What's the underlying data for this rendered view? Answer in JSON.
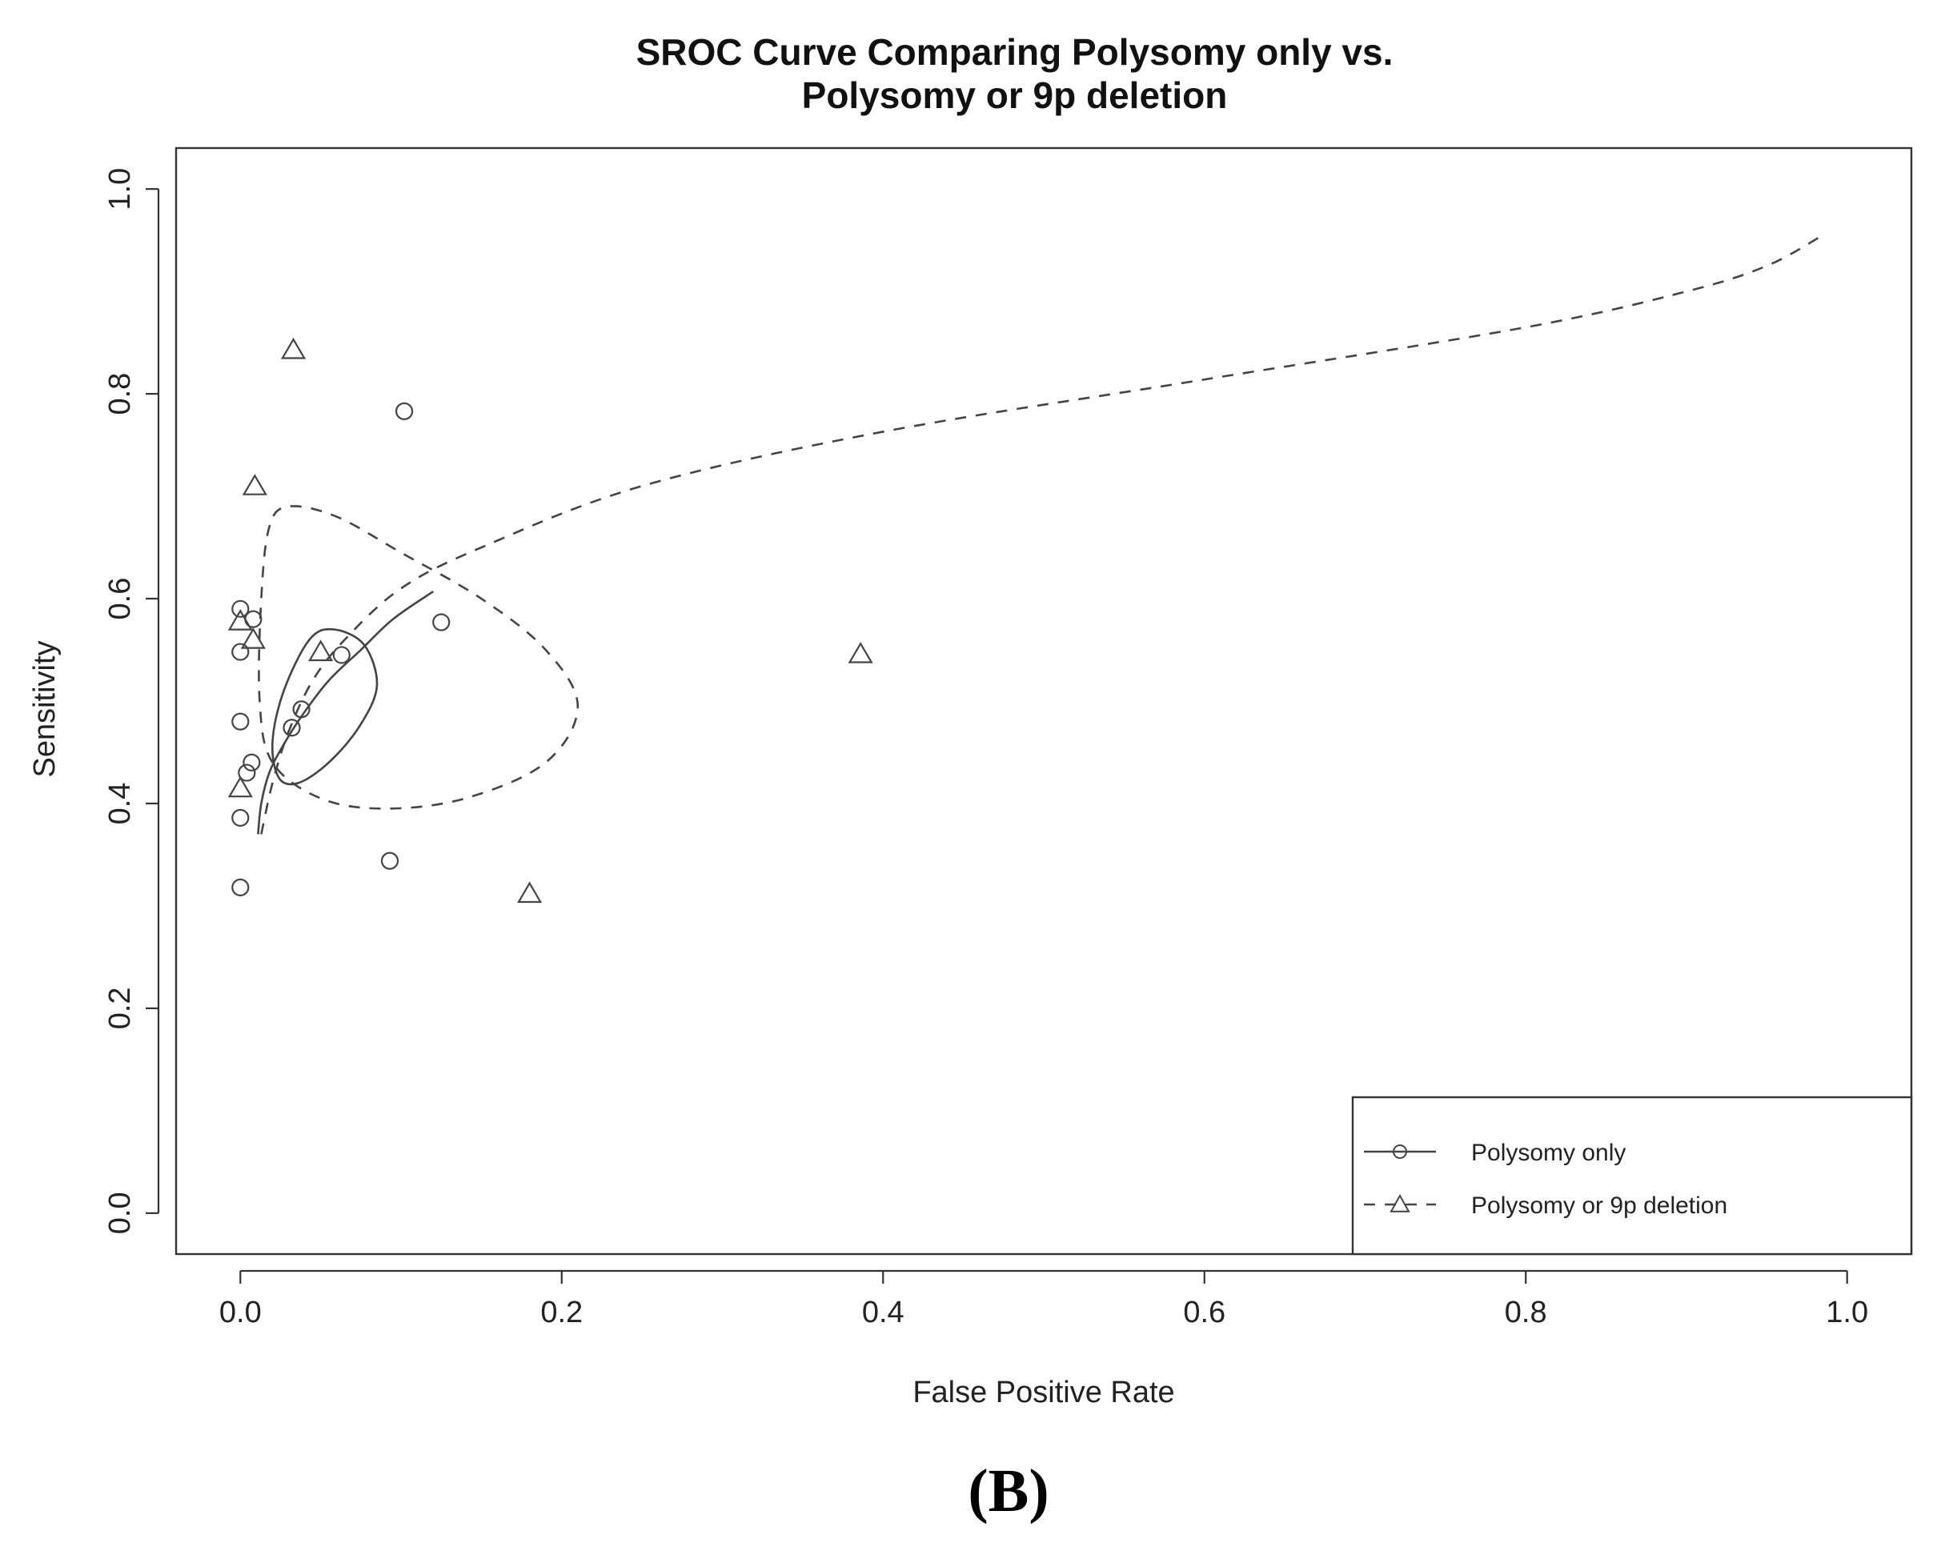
{
  "figure": {
    "panel_label": "(B)"
  },
  "chart_data": {
    "type": "scatter",
    "title": [
      "SROC Curve Comparing Polysomy only vs.",
      "Polysomy or 9p deletion"
    ],
    "xlabel": "False Positive Rate",
    "ylabel": "Sensitivity",
    "xlim": [
      -0.04,
      1.04
    ],
    "ylim": [
      -0.04,
      1.04
    ],
    "xticks": [
      "0.0",
      "0.2",
      "0.4",
      "0.6",
      "0.8",
      "1.0"
    ],
    "yticks": [
      "0.0",
      "0.2",
      "0.4",
      "0.6",
      "0.8",
      "1.0"
    ],
    "grid": false,
    "legend_position": "bottom-right",
    "colors": {
      "line": "#444444",
      "axis": "#333333"
    },
    "series": [
      {
        "name": "Polysomy only",
        "marker": "circle",
        "line_style": "solid",
        "points": [
          {
            "x": 0.0,
            "y": 0.59
          },
          {
            "x": 0.008,
            "y": 0.58
          },
          {
            "x": 0.0,
            "y": 0.548
          },
          {
            "x": 0.0,
            "y": 0.48
          },
          {
            "x": 0.007,
            "y": 0.44
          },
          {
            "x": 0.004,
            "y": 0.43
          },
          {
            "x": 0.0,
            "y": 0.386
          },
          {
            "x": 0.0,
            "y": 0.318
          },
          {
            "x": 0.032,
            "y": 0.474
          },
          {
            "x": 0.038,
            "y": 0.492
          },
          {
            "x": 0.063,
            "y": 0.545
          },
          {
            "x": 0.093,
            "y": 0.344
          },
          {
            "x": 0.102,
            "y": 0.783
          },
          {
            "x": 0.125,
            "y": 0.577
          }
        ],
        "sroc_curve": [
          {
            "x": 0.011,
            "y": 0.37
          },
          {
            "x": 0.013,
            "y": 0.4
          },
          {
            "x": 0.018,
            "y": 0.43
          },
          {
            "x": 0.026,
            "y": 0.455
          },
          {
            "x": 0.038,
            "y": 0.485
          },
          {
            "x": 0.055,
            "y": 0.52
          },
          {
            "x": 0.075,
            "y": 0.55
          },
          {
            "x": 0.095,
            "y": 0.58
          },
          {
            "x": 0.12,
            "y": 0.607
          }
        ],
        "confidence_region": [
          {
            "x": 0.024,
            "y": 0.425
          },
          {
            "x": 0.02,
            "y": 0.46
          },
          {
            "x": 0.027,
            "y": 0.51
          },
          {
            "x": 0.043,
            "y": 0.56
          },
          {
            "x": 0.058,
            "y": 0.57
          },
          {
            "x": 0.077,
            "y": 0.555
          },
          {
            "x": 0.085,
            "y": 0.515
          },
          {
            "x": 0.074,
            "y": 0.475
          },
          {
            "x": 0.055,
            "y": 0.44
          },
          {
            "x": 0.036,
            "y": 0.42
          },
          {
            "x": 0.024,
            "y": 0.425
          }
        ]
      },
      {
        "name": "Polysomy or 9p deletion",
        "marker": "triangle",
        "line_style": "dashed",
        "points": [
          {
            "x": 0.033,
            "y": 0.843
          },
          {
            "x": 0.009,
            "y": 0.71
          },
          {
            "x": 0.0,
            "y": 0.578
          },
          {
            "x": 0.008,
            "y": 0.56
          },
          {
            "x": 0.05,
            "y": 0.548
          },
          {
            "x": 0.0,
            "y": 0.415
          },
          {
            "x": 0.18,
            "y": 0.312
          },
          {
            "x": 0.386,
            "y": 0.546
          }
        ],
        "sroc_curve": [
          {
            "x": 0.013,
            "y": 0.37
          },
          {
            "x": 0.02,
            "y": 0.42
          },
          {
            "x": 0.03,
            "y": 0.47
          },
          {
            "x": 0.045,
            "y": 0.52
          },
          {
            "x": 0.065,
            "y": 0.56
          },
          {
            "x": 0.1,
            "y": 0.61
          },
          {
            "x": 0.15,
            "y": 0.65
          },
          {
            "x": 0.25,
            "y": 0.71
          },
          {
            "x": 0.4,
            "y": 0.763
          },
          {
            "x": 0.6,
            "y": 0.814
          },
          {
            "x": 0.8,
            "y": 0.865
          },
          {
            "x": 0.9,
            "y": 0.9
          },
          {
            "x": 0.95,
            "y": 0.925
          },
          {
            "x": 0.985,
            "y": 0.955
          }
        ],
        "confidence_region": [
          {
            "x": 0.02,
            "y": 0.44
          },
          {
            "x": 0.012,
            "y": 0.5
          },
          {
            "x": 0.013,
            "y": 0.6
          },
          {
            "x": 0.018,
            "y": 0.67
          },
          {
            "x": 0.03,
            "y": 0.69
          },
          {
            "x": 0.06,
            "y": 0.68
          },
          {
            "x": 0.1,
            "y": 0.645
          },
          {
            "x": 0.15,
            "y": 0.6
          },
          {
            "x": 0.19,
            "y": 0.55
          },
          {
            "x": 0.21,
            "y": 0.495
          },
          {
            "x": 0.19,
            "y": 0.44
          },
          {
            "x": 0.14,
            "y": 0.405
          },
          {
            "x": 0.09,
            "y": 0.395
          },
          {
            "x": 0.05,
            "y": 0.405
          },
          {
            "x": 0.02,
            "y": 0.44
          }
        ]
      }
    ]
  }
}
